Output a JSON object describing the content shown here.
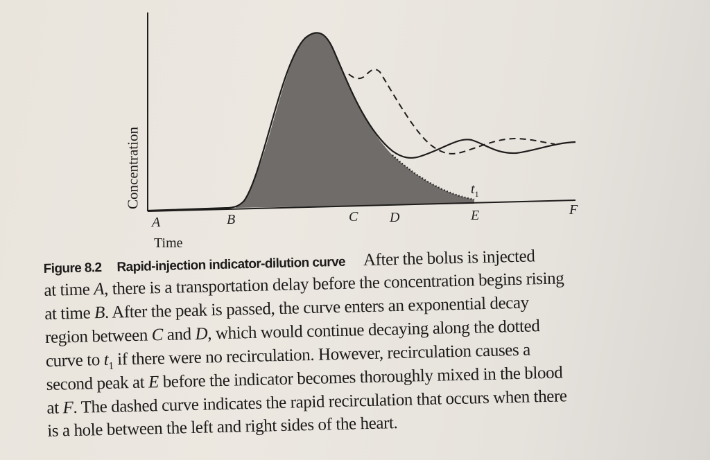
{
  "figure": {
    "y_axis_label": "Concentration",
    "x_axis_label": "Time",
    "point_labels": [
      "A",
      "B",
      "C",
      "D",
      "E",
      "F"
    ],
    "t1_label": "t",
    "t1_sub": "1",
    "colors": {
      "shade": "#6f6c6a",
      "ink": "#1e1c1b"
    }
  },
  "caption": {
    "number": "Figure 8.2",
    "title": "Rapid-injection indicator-dilution curve",
    "lines": [
      [
        {
          "t": "After the bolus is injected"
        }
      ],
      [
        {
          "t": "at time "
        },
        {
          "t": "A",
          "i": true
        },
        {
          "t": ", there is a transportation delay before the concentration begins rising"
        }
      ],
      [
        {
          "t": "at time "
        },
        {
          "t": "B",
          "i": true
        },
        {
          "t": ". After the peak is passed, the curve enters an exponential decay"
        }
      ],
      [
        {
          "t": "region between "
        },
        {
          "t": "C",
          "i": true
        },
        {
          "t": " and "
        },
        {
          "t": "D",
          "i": true
        },
        {
          "t": ", which would continue decaying along the dotted"
        }
      ],
      [
        {
          "t": "curve to "
        },
        {
          "t": "t",
          "i": true
        },
        {
          "t": "1",
          "sub": true
        },
        {
          "t": " if there were no recirculation. However, recirculation causes a"
        }
      ],
      [
        {
          "t": "second peak at "
        },
        {
          "t": "E",
          "i": true
        },
        {
          "t": " before the indicator becomes thoroughly mixed in the blood"
        }
      ],
      [
        {
          "t": "at "
        },
        {
          "t": "F",
          "i": true
        },
        {
          "t": ". The dashed curve indicates the rapid recirculation that occurs when there"
        }
      ],
      [
        {
          "t": "is a hole between the left and right sides of the heart."
        }
      ]
    ]
  }
}
